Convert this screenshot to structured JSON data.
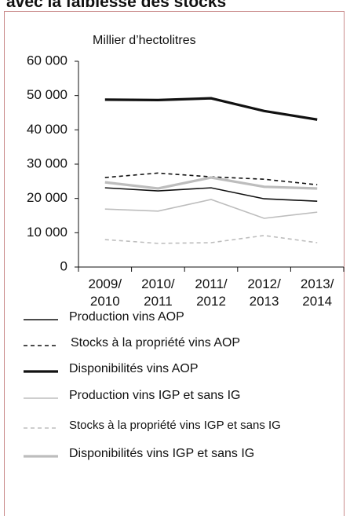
{
  "chart_data": {
    "type": "line",
    "title": "avec la faiblesse des stocks",
    "y_label": "Millier d’hectolitres",
    "categories": [
      "2009/\n2010",
      "2010/\n2011",
      "2011/\n2012",
      "2012/\n2013",
      "2013/\n2014"
    ],
    "ylim": [
      0,
      60000
    ],
    "yticks": [
      {
        "value": 0,
        "label": "0"
      },
      {
        "value": 10000,
        "label": "10 000"
      },
      {
        "value": 20000,
        "label": "20 000"
      },
      {
        "value": 30000,
        "label": "30 000"
      },
      {
        "value": 40000,
        "label": "40 000"
      },
      {
        "value": 50000,
        "label": "50 000"
      },
      {
        "value": 60000,
        "label": "60 000"
      }
    ],
    "series": [
      {
        "name": "Production vins AOP",
        "color": "#111111",
        "style": "solid",
        "values": [
          23100,
          22200,
          23100,
          19900,
          19200
        ]
      },
      {
        "name": "Stocks à la propriété vins AOP",
        "color": "#111111",
        "style": "dashed",
        "values": [
          26100,
          27400,
          26300,
          25600,
          24000
        ]
      },
      {
        "name": "Disponibilités vins AOP",
        "color": "#111111",
        "style": "thick",
        "values": [
          48800,
          48700,
          49200,
          45500,
          43000
        ]
      },
      {
        "name": "Production vins IGP et sans IG",
        "color": "#bdbdbd",
        "style": "solid",
        "values": [
          16900,
          16300,
          19700,
          14200,
          16000
        ]
      },
      {
        "name": "Stocks à la propriété vins IGP et sans IG",
        "color": "#bdbdbd",
        "style": "dashed",
        "values": [
          8000,
          6900,
          7100,
          9200,
          7100
        ]
      },
      {
        "name": "Disponibilités vins IGP et sans IG",
        "color": "#bdbdbd",
        "style": "thick",
        "values": [
          24700,
          22900,
          26100,
          23400,
          22900
        ]
      }
    ]
  }
}
